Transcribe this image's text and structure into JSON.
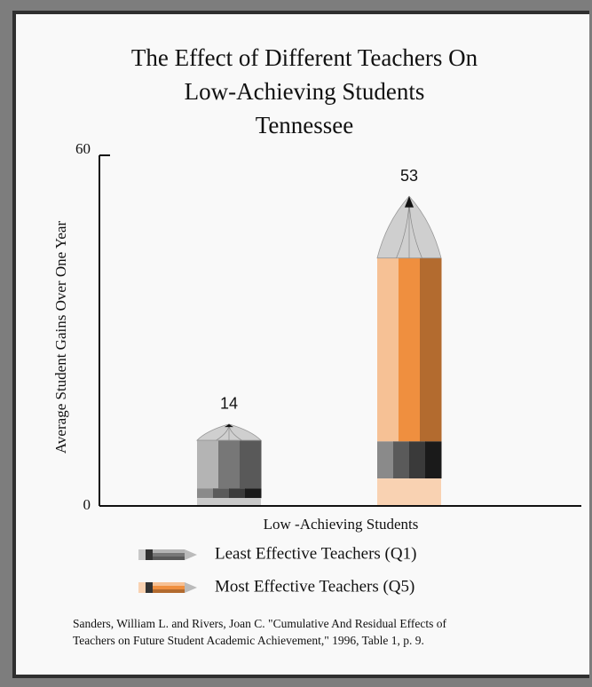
{
  "chart_data": {
    "type": "pencil-bar",
    "title": [
      "The Effect of Different Teachers On",
      "Low-Achieving Students",
      "Tennessee"
    ],
    "y_label": "Average Student  Gains Over One  Year",
    "x_label": "Low -Achieving Students",
    "ylim": [
      0,
      60
    ],
    "yticks": [
      0,
      60
    ],
    "series": [
      {
        "name": "Least Effective Teachers (Q1)",
        "color": "#777777",
        "values": [
          14
        ]
      },
      {
        "name": "Most Effective Teachers (Q5)",
        "color": "#ef8f3f",
        "values": [
          53
        ]
      }
    ],
    "source": [
      "Sanders, William L. and Rivers, Joan C.  \"Cumulative And Residual Effects of",
      "Teachers on Future Student Academic Achievement,\" 1996, Table 1, p. 9."
    ]
  }
}
